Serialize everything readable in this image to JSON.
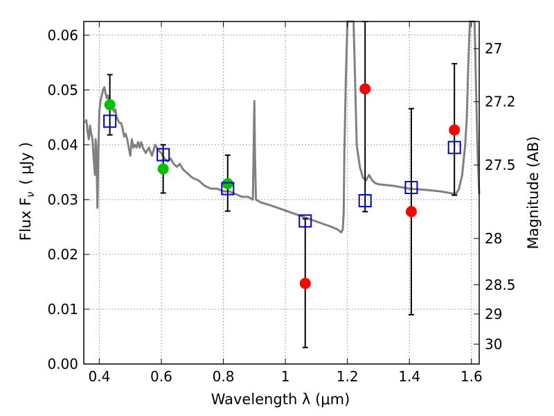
{
  "chart_data": {
    "type": "scatter",
    "xlabel": "Wavelength  λ (μm)",
    "ylabel": "Flux  F",
    "ylabel_sub": "ν",
    "ylabel_unit": "( μJy )",
    "y2label": "Magnitude (AB)",
    "xlim": [
      0.35,
      1.625
    ],
    "ylim": [
      0.0,
      0.0625
    ],
    "grid": true,
    "x_ticks": [
      0.4,
      0.6,
      0.8,
      1.0,
      1.2,
      1.4,
      1.6
    ],
    "x_tick_labels": [
      "0.4",
      "0.6",
      "0.8",
      "1",
      "1.2",
      "1.4",
      "1.6"
    ],
    "y_ticks": [
      0.0,
      0.01,
      0.02,
      0.03,
      0.04,
      0.05,
      0.06
    ],
    "y_tick_labels": [
      "0.00",
      "0.01",
      "0.02",
      "0.03",
      "0.04",
      "0.05",
      "0.06"
    ],
    "mag_ticks": [
      27,
      27.2,
      27.5,
      28,
      28.5,
      29,
      30
    ],
    "mag_tick_labels": [
      "27",
      "27.2",
      "27.5",
      "28",
      "28.5",
      "29",
      "30"
    ],
    "colors": {
      "sed": "#808080",
      "detected": "#00c000",
      "nondetected": "#ff0000",
      "model": "#0000cc",
      "errorbar": "#000000",
      "grid": "#888888"
    },
    "sed_model": {
      "x": [
        0.355,
        0.358,
        0.362,
        0.366,
        0.37,
        0.374,
        0.378,
        0.382,
        0.386,
        0.388,
        0.39,
        0.392,
        0.394,
        0.397,
        0.4,
        0.404,
        0.408,
        0.412,
        0.416,
        0.42,
        0.424,
        0.428,
        0.432,
        0.436,
        0.44,
        0.444,
        0.448,
        0.452,
        0.456,
        0.46,
        0.465,
        0.47,
        0.475,
        0.48,
        0.485,
        0.49,
        0.495,
        0.5,
        0.505,
        0.51,
        0.515,
        0.52,
        0.525,
        0.53,
        0.535,
        0.54,
        0.545,
        0.55,
        0.56,
        0.57,
        0.58,
        0.59,
        0.6,
        0.61,
        0.62,
        0.63,
        0.64,
        0.65,
        0.66,
        0.67,
        0.68,
        0.7,
        0.72,
        0.74,
        0.76,
        0.78,
        0.8,
        0.82,
        0.84,
        0.86,
        0.88,
        0.895,
        0.898,
        0.9,
        0.902,
        0.905,
        0.92,
        0.95,
        1.0,
        1.05,
        1.1,
        1.15,
        1.17,
        1.18,
        1.185,
        1.188,
        1.19,
        1.195,
        1.2,
        1.205,
        1.21,
        1.215,
        1.22,
        1.23,
        1.24,
        1.25,
        1.26,
        1.27,
        1.28,
        1.29,
        1.3,
        1.35,
        1.4,
        1.45,
        1.5,
        1.55,
        1.56,
        1.57,
        1.58,
        1.585,
        1.59,
        1.595,
        1.6,
        1.605,
        1.61,
        1.615,
        1.62,
        1.625
      ],
      "y": [
        0.044,
        0.0445,
        0.0425,
        0.041,
        0.0435,
        0.042,
        0.041,
        0.0375,
        0.0345,
        0.041,
        0.04,
        0.035,
        0.0285,
        0.0385,
        0.046,
        0.048,
        0.049,
        0.05,
        0.0505,
        0.0495,
        0.0485,
        0.049,
        0.048,
        0.047,
        0.0475,
        0.0465,
        0.046,
        0.0465,
        0.045,
        0.0445,
        0.044,
        0.044,
        0.043,
        0.0415,
        0.042,
        0.041,
        0.0395,
        0.038,
        0.041,
        0.0395,
        0.04,
        0.0395,
        0.0405,
        0.0395,
        0.0405,
        0.0395,
        0.039,
        0.0385,
        0.0395,
        0.038,
        0.04,
        0.039,
        0.0385,
        0.0375,
        0.037,
        0.0375,
        0.0365,
        0.036,
        0.0365,
        0.0355,
        0.035,
        0.034,
        0.0335,
        0.0325,
        0.032,
        0.032,
        0.0315,
        0.0315,
        0.031,
        0.0305,
        0.0305,
        0.03,
        0.04,
        0.048,
        0.038,
        0.03,
        0.0295,
        0.029,
        0.028,
        0.027,
        0.026,
        0.025,
        0.0245,
        0.024,
        0.0245,
        0.0275,
        0.038,
        0.052,
        0.0625,
        0.0625,
        0.0625,
        0.0625,
        0.0625,
        0.04,
        0.036,
        0.034,
        0.0335,
        0.0345,
        0.0335,
        0.033,
        0.0328,
        0.0325,
        0.032,
        0.0318,
        0.0315,
        0.031,
        0.032,
        0.0345,
        0.04,
        0.045,
        0.055,
        0.0625,
        0.0625,
        0.0625,
        0.0625,
        0.05,
        0.038,
        0.031
      ]
    },
    "series": [
      {
        "marker": "green-circle",
        "x": [
          0.434,
          0.606,
          0.814
        ],
        "y": [
          0.0473,
          0.0356,
          0.0329
        ],
        "yerr_low": [
          0.0418,
          0.0312,
          0.0279
        ],
        "yerr_high": [
          0.0528,
          0.04,
          0.0381
        ]
      },
      {
        "marker": "red-circle",
        "x": [
          1.064,
          1.257,
          1.406,
          1.545
        ],
        "y": [
          0.0147,
          0.0502,
          0.0278,
          0.0427
        ],
        "yerr_low": [
          0.003,
          0.0278,
          0.009,
          0.0308
        ],
        "yerr_high": [
          0.0265,
          0.0625,
          0.0466,
          0.0548
        ]
      },
      {
        "marker": "blue-open-square",
        "x": [
          0.434,
          0.606,
          0.814,
          1.064,
          1.257,
          1.406,
          1.545
        ],
        "y": [
          0.0443,
          0.0382,
          0.032,
          0.0261,
          0.0298,
          0.0322,
          0.0395
        ]
      }
    ]
  }
}
